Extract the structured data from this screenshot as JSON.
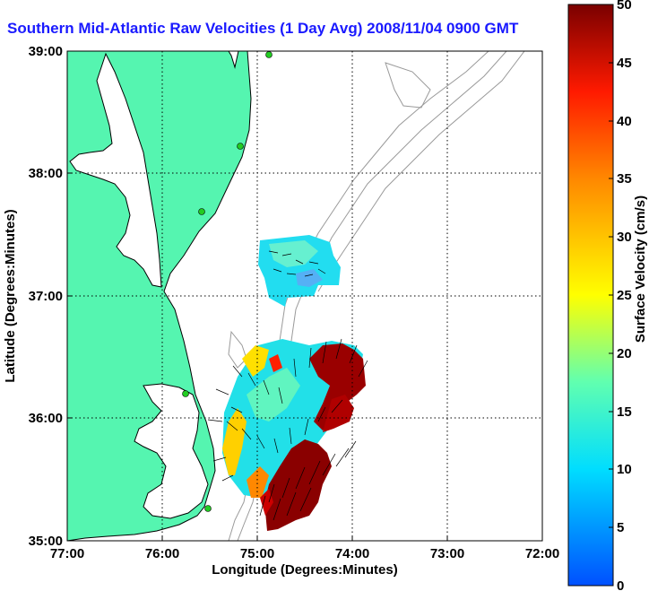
{
  "title": "Southern Mid-Atlantic Raw Velocities (1 Day Avg) 2008/11/04 0900 GMT",
  "x_axis": {
    "label": "Longitude (Degrees:Minutes)",
    "ticks": [
      "77:00",
      "76:00",
      "75:00",
      "74:00",
      "73:00",
      "72:00"
    ]
  },
  "y_axis": {
    "label": "Latitude (Degrees:Minutes)",
    "ticks": [
      "39:00",
      "38:00",
      "37:00",
      "36:00",
      "35:00"
    ]
  },
  "colorbar": {
    "label": "Surface Velocity (cm/s)",
    "ticks": [
      "50",
      "45",
      "40",
      "35",
      "30",
      "25",
      "20",
      "15",
      "10",
      "5",
      "0"
    ],
    "range": [
      0,
      50
    ]
  },
  "colors": {
    "land": "#55f5b0",
    "coast": "#000000",
    "bathymetry": "#9a9a9a",
    "title": "#1a1aff",
    "station": "#22cc22"
  },
  "map_extent": {
    "lon": [
      -77,
      -72
    ],
    "lat": [
      35,
      39
    ]
  }
}
